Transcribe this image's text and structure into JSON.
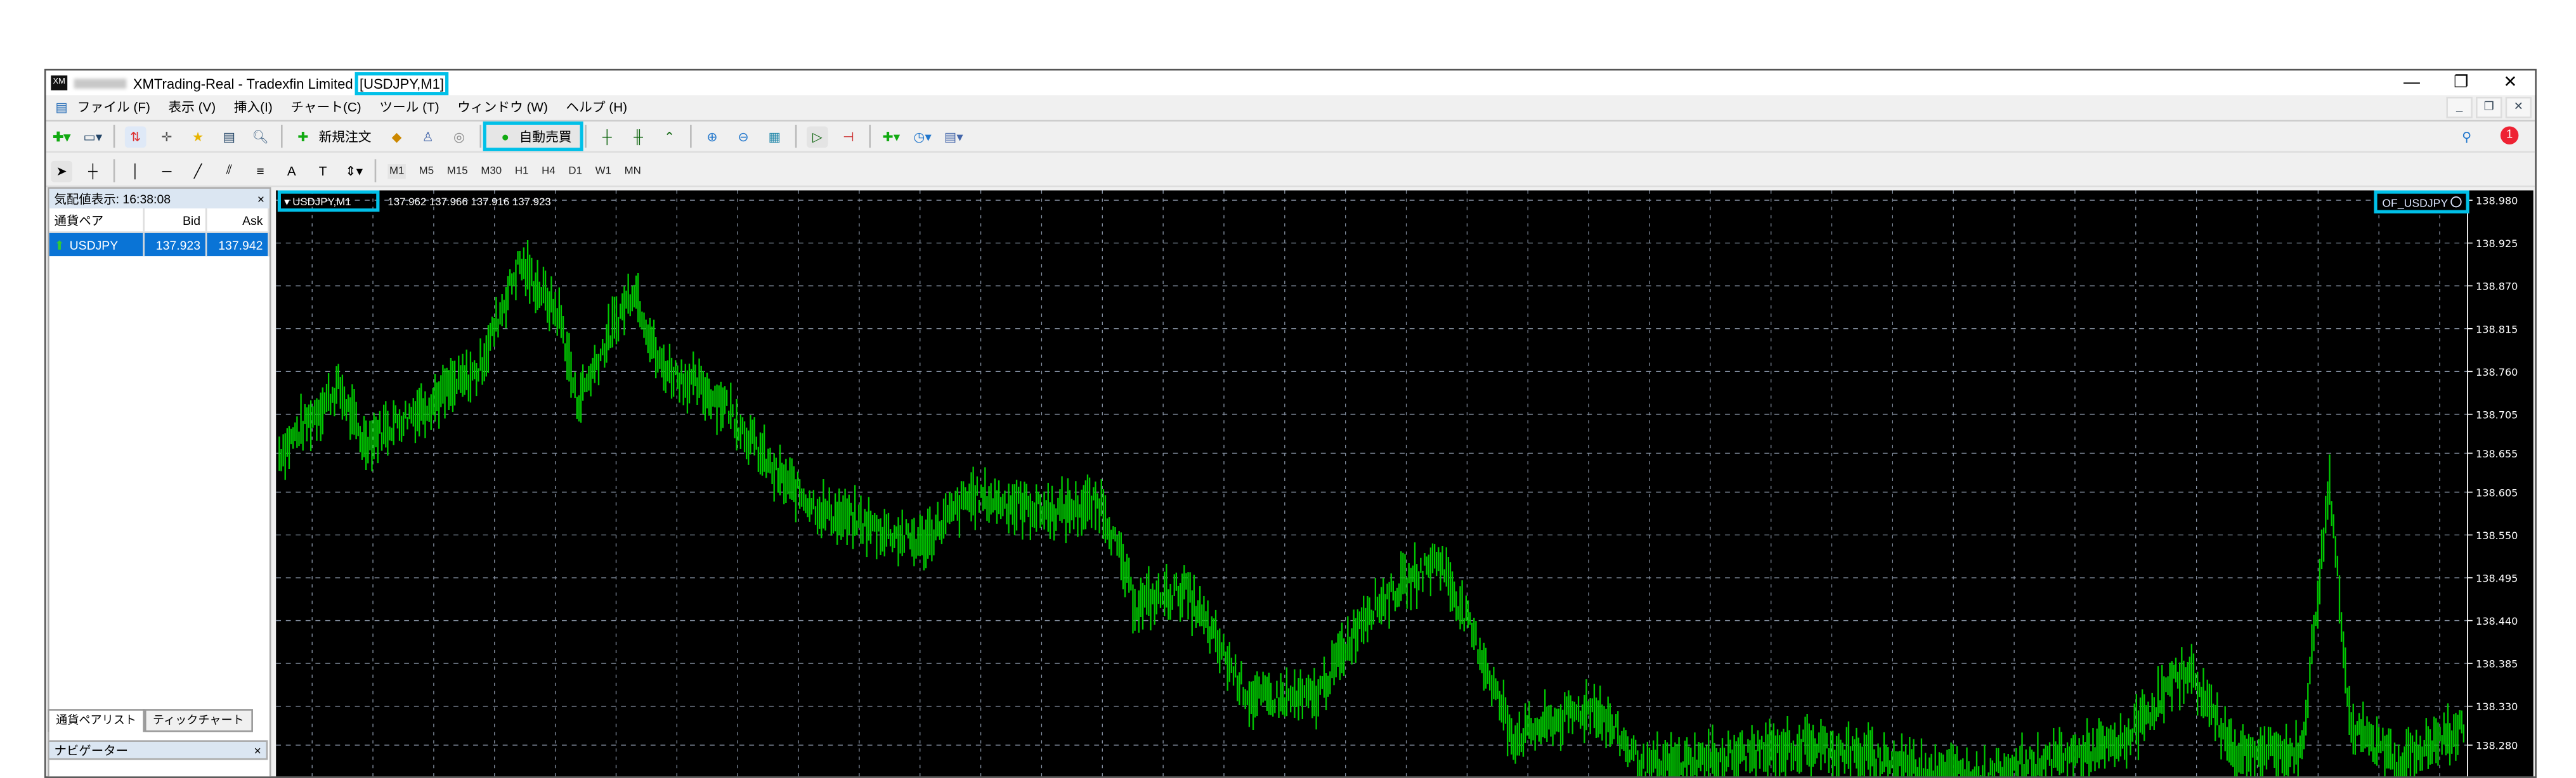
{
  "window": {
    "title": "XMTrading-Real - Tradexfin Limited",
    "title_chart": "[USDJPY,M1]",
    "minimize": "—",
    "restore": "❐",
    "close": "✕"
  },
  "menu": [
    "ファイル (F)",
    "表示 (V)",
    "挿入(I)",
    "チャート(C)",
    "ツール (T)",
    "ウィンドウ (W)",
    "ヘルプ (H)"
  ],
  "toolbar": {
    "new_order": "新規注文",
    "auto_trading": "自動売買",
    "notification_count": "1"
  },
  "timeframes": [
    "M1",
    "M5",
    "M15",
    "M30",
    "H1",
    "H4",
    "D1",
    "W1",
    "MN"
  ],
  "market_watch": {
    "title": "気配値表示: 16:38:08",
    "close": "×",
    "columns": [
      "通貨ペア",
      "Bid",
      "Ask"
    ],
    "rows": [
      {
        "symbol": "USDJPY",
        "bid": "137.923",
        "ask": "137.942",
        "direction": "up"
      }
    ],
    "tabs": [
      "通貨ペアリスト",
      "ティックチャート"
    ]
  },
  "navigator": {
    "title": "ナビゲーター",
    "close": "×"
  },
  "chart": {
    "symbol": "USDJPY,M1",
    "ohlc": "137.962 137.966 137.916 137.923",
    "expert": "OF_USDJPY",
    "expert_icon": "smiley-icon",
    "bar_color": "#00c800",
    "background": "#000000",
    "price_labels": [
      "138.980",
      "138.925",
      "138.870",
      "138.815",
      "138.760",
      "138.705",
      "138.655",
      "138.605",
      "138.550",
      "138.495",
      "138.440",
      "138.385",
      "138.330",
      "138.280"
    ]
  }
}
